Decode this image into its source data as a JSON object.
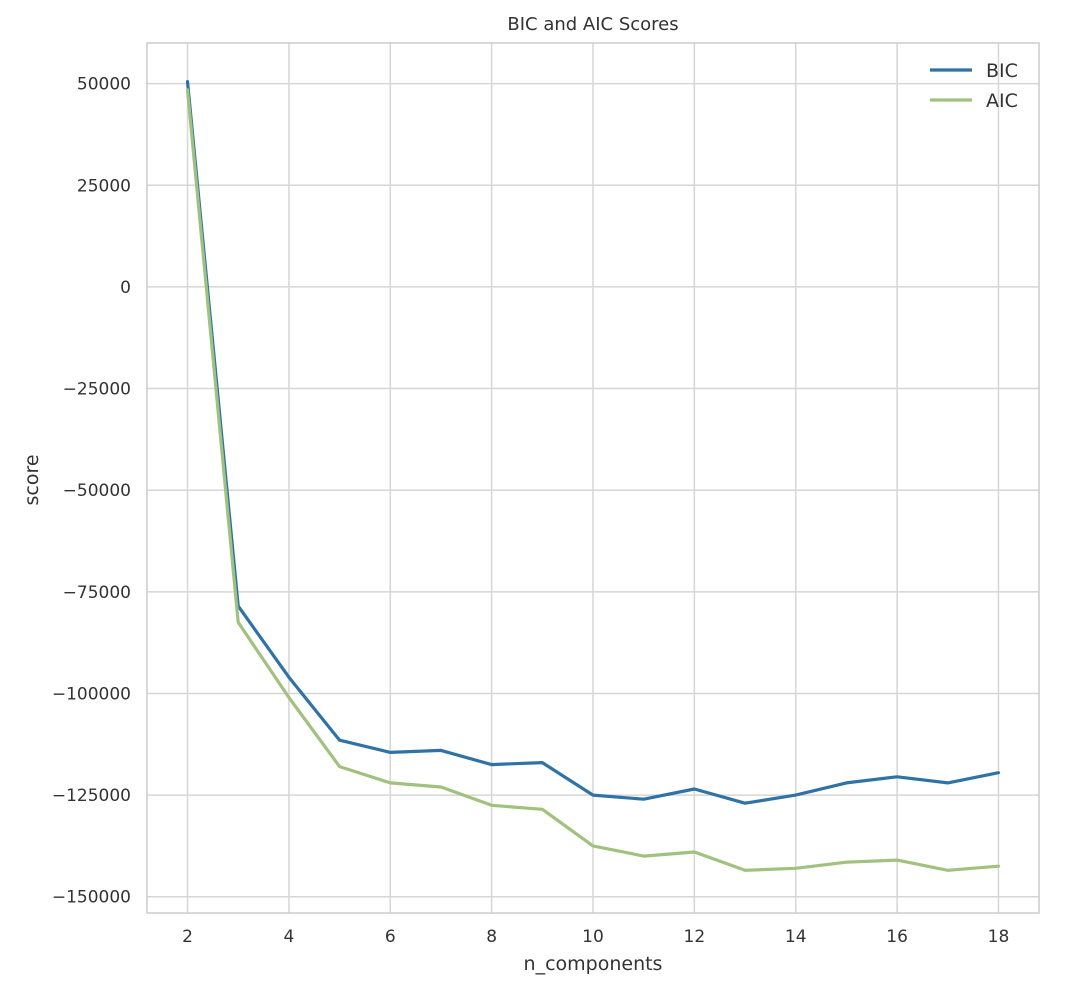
{
  "chart_data": {
    "type": "line",
    "title": "BIC and AIC Scores",
    "xlabel": "n_components",
    "ylabel": "score",
    "x": [
      2,
      3,
      4,
      5,
      6,
      7,
      8,
      9,
      10,
      11,
      12,
      13,
      14,
      15,
      16,
      17,
      18
    ],
    "xlim": [
      1.2,
      18.8
    ],
    "ylim": [
      -154000,
      60000
    ],
    "xticks": [
      2,
      4,
      6,
      8,
      10,
      12,
      14,
      16,
      18
    ],
    "yticks": [
      50000,
      25000,
      0,
      -25000,
      -50000,
      -75000,
      -100000,
      -125000,
      -150000
    ],
    "ytick_labels": [
      "50000",
      "25000",
      "0",
      "−25000",
      "−50000",
      "−75000",
      "−100000",
      "−125000",
      "−150000"
    ],
    "grid": true,
    "legend_position": "top-right",
    "series": [
      {
        "name": "BIC",
        "color": "#2f72a6",
        "values": [
          50500,
          -78500,
          -96000,
          -111500,
          -114500,
          -114000,
          -117500,
          -117000,
          -125000,
          -126000,
          -123500,
          -127000,
          -125000,
          -122000,
          -120500,
          -122000,
          -119500
        ]
      },
      {
        "name": "AIC",
        "color": "#a0c27e",
        "values": [
          48500,
          -82500,
          -101000,
          -118000,
          -122000,
          -123000,
          -127500,
          -128500,
          -137500,
          -140000,
          -139000,
          -143500,
          -143000,
          -141500,
          -141000,
          -143500,
          -142500
        ]
      }
    ]
  }
}
